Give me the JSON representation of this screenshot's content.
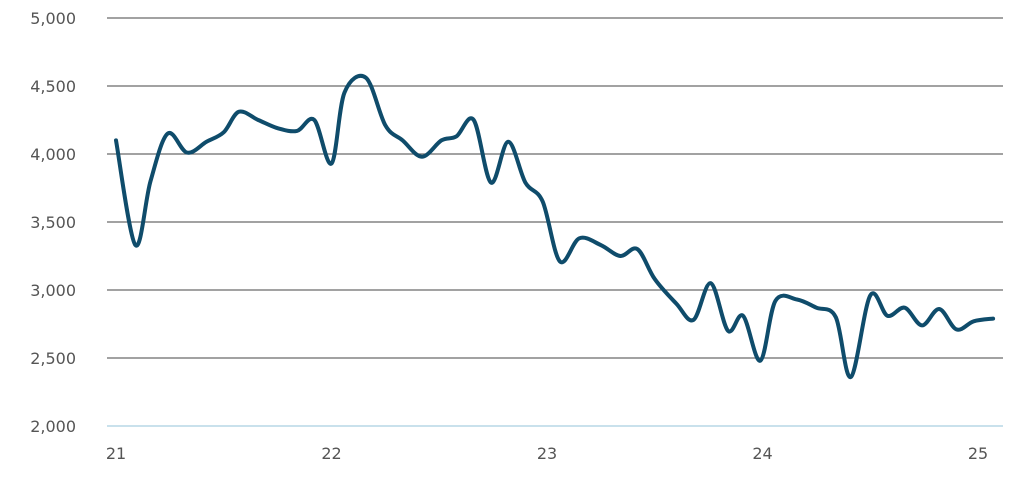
{
  "chart_data": {
    "type": "line",
    "title": "",
    "xlabel": "",
    "ylabel": "",
    "xlim": [
      21,
      25.1
    ],
    "ylim": [
      2000,
      5000
    ],
    "grid": true,
    "legend": "none",
    "x_tick_labels": [
      "21",
      "22",
      "23",
      "24",
      "25"
    ],
    "x_ticks": [
      21,
      22,
      23,
      24,
      25
    ],
    "y_tick_labels": [
      "2,000",
      "2,500",
      "3,000",
      "3,500",
      "4,000",
      "4,500",
      "5,000"
    ],
    "y_ticks": [
      2000,
      2500,
      3000,
      3500,
      4000,
      4500,
      5000
    ],
    "colors": {
      "series": "#0f4c6b",
      "grid": "#6b6b6b",
      "baseline": "#a9cfe0",
      "text": "#555555"
    },
    "series": [
      {
        "x": [
          21.0,
          21.09,
          21.16,
          21.24,
          21.33,
          21.42,
          21.5,
          21.57,
          21.66,
          21.75,
          21.84,
          21.92,
          22.0,
          22.06,
          22.16,
          22.25,
          22.33,
          22.42,
          22.51,
          22.58,
          22.66,
          22.74,
          22.82,
          22.9,
          22.98,
          23.06,
          23.15,
          23.25,
          23.34,
          23.42,
          23.5,
          23.6,
          23.68,
          23.76,
          23.84,
          23.91,
          23.99,
          24.06,
          24.16,
          24.25,
          24.34,
          24.41,
          24.5,
          24.58,
          24.66,
          24.74,
          24.82,
          24.9,
          24.98,
          25.07
        ],
        "values": [
          4100,
          3330,
          3800,
          4150,
          4010,
          4090,
          4160,
          4310,
          4250,
          4190,
          4170,
          4250,
          3930,
          4450,
          4560,
          4210,
          4100,
          3980,
          4100,
          4130,
          4250,
          3790,
          4090,
          3790,
          3650,
          3210,
          3380,
          3330,
          3250,
          3300,
          3080,
          2900,
          2780,
          3050,
          2700,
          2810,
          2480,
          2920,
          2930,
          2870,
          2800,
          2360,
          2960,
          2810,
          2870,
          2740,
          2860,
          2710,
          2770,
          2790
        ]
      }
    ]
  }
}
